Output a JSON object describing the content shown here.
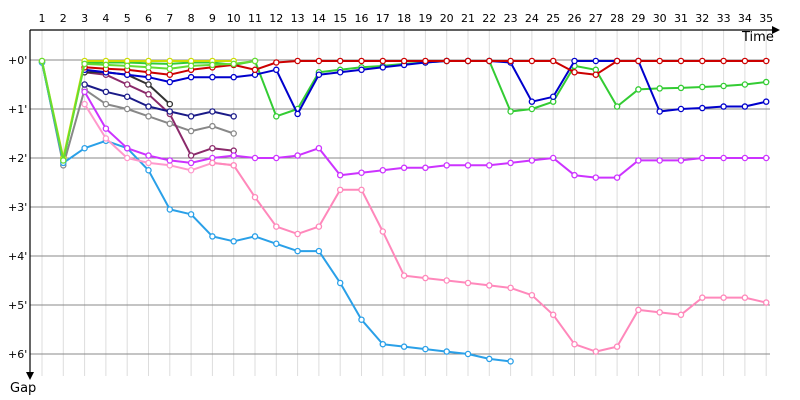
{
  "chart_data": {
    "type": "line",
    "xlabel": "Time",
    "ylabel": "Gap",
    "x_ticks": [
      "1",
      "2",
      "3",
      "4",
      "5",
      "6",
      "7",
      "8",
      "9",
      "10",
      "11",
      "12",
      "13",
      "14",
      "15",
      "16",
      "17",
      "18",
      "19",
      "20",
      "21",
      "22",
      "23",
      "24",
      "25",
      "26",
      "27",
      "28",
      "29",
      "30",
      "31",
      "32",
      "33",
      "34",
      "35"
    ],
    "y_ticks": [
      "+0'",
      "+1'",
      "+2'",
      "+3'",
      "+4'",
      "+5'",
      "+6'"
    ],
    "xlim": [
      1,
      35.3
    ],
    "ylim": [
      0,
      6.2
    ],
    "grid": true,
    "series": [
      {
        "color": "#888888",
        "x": [
          1,
          2,
          3,
          4,
          5,
          6,
          7,
          8,
          9,
          10
        ],
        "y": [
          0.03,
          2.15,
          0.6,
          0.9,
          1.0,
          1.15,
          1.3,
          1.45,
          1.35,
          1.5
        ]
      },
      {
        "color": "#33cc33",
        "x": [
          1,
          2,
          3,
          4,
          5,
          6,
          7,
          8,
          9,
          10,
          11,
          12,
          13,
          14,
          15,
          16,
          17,
          18,
          19,
          20,
          21,
          22,
          23,
          24,
          25,
          26,
          27,
          28,
          29,
          30,
          31,
          32,
          33,
          34,
          35
        ],
        "y": [
          0.05,
          2.05,
          0.05,
          0.05,
          0.05,
          0.07,
          0.08,
          0.05,
          0.05,
          0.1,
          0.02,
          1.15,
          1.0,
          0.25,
          0.2,
          0.15,
          0.12,
          0.08,
          0.05,
          0.02,
          0.02,
          0.02,
          1.05,
          1.0,
          0.85,
          0.12,
          0.2,
          0.95,
          0.6,
          0.58,
          0.57,
          0.55,
          0.53,
          0.5,
          0.45
        ]
      },
      {
        "color": "#2aa0e8",
        "x": [
          1,
          2,
          3,
          4,
          5,
          6,
          7,
          8,
          9,
          10,
          11,
          12,
          13,
          14,
          15,
          16,
          17,
          18,
          19,
          20,
          21,
          22,
          23
        ],
        "y": [
          0.05,
          2.1,
          1.8,
          1.65,
          1.8,
          2.25,
          3.05,
          3.15,
          3.6,
          3.7,
          3.6,
          3.75,
          3.9,
          3.9,
          4.55,
          5.3,
          5.8,
          5.85,
          5.9,
          5.95,
          6.0,
          6.1,
          6.15
        ]
      },
      {
        "color": "#ff99cc",
        "x": [
          3,
          4,
          5,
          6,
          7,
          8,
          9,
          10
        ],
        "y": [
          0.9,
          1.6,
          2.0,
          2.1,
          2.15,
          2.25,
          2.1,
          2.15
        ]
      },
      {
        "color": "#8b2a6b",
        "x": [
          3,
          4,
          5,
          6,
          7,
          8,
          9,
          10
        ],
        "y": [
          0.25,
          0.3,
          0.5,
          0.7,
          1.1,
          1.95,
          1.8,
          1.85
        ]
      },
      {
        "color": "#333333",
        "x": [
          3,
          4,
          5,
          6,
          7
        ],
        "y": [
          0.25,
          0.25,
          0.3,
          0.5,
          0.9
        ]
      },
      {
        "color": "#1a1a88",
        "x": [
          3,
          4,
          5,
          6,
          7,
          8,
          9,
          10
        ],
        "y": [
          0.5,
          0.65,
          0.75,
          0.95,
          1.05,
          1.15,
          1.05,
          1.15
        ]
      },
      {
        "color": "#cc33ff",
        "x": [
          3,
          4,
          5,
          6,
          7,
          8,
          9,
          10,
          11,
          12,
          13,
          14,
          15,
          16,
          17,
          18,
          19,
          20,
          21,
          22,
          23,
          24,
          25,
          26,
          27,
          28,
          29,
          30,
          31,
          32,
          33,
          34,
          35
        ],
        "y": [
          0.65,
          1.4,
          1.8,
          1.95,
          2.05,
          2.1,
          2.0,
          1.95,
          2.0,
          2.0,
          1.95,
          1.8,
          2.35,
          2.3,
          2.25,
          2.2,
          2.2,
          2.15,
          2.15,
          2.15,
          2.1,
          2.05,
          2.0,
          2.35,
          2.4,
          2.4,
          2.05,
          2.05,
          2.05,
          2.0,
          2.0,
          2.0,
          2.0
        ]
      },
      {
        "color": "#ff88bb",
        "x": [
          9,
          10,
          11,
          12,
          13,
          14,
          15,
          16,
          17,
          18,
          19,
          20,
          21,
          22,
          23,
          24,
          25,
          26,
          27,
          28,
          29,
          30,
          31,
          32,
          33,
          34,
          35
        ],
        "y": [
          2.1,
          2.15,
          2.8,
          3.4,
          3.55,
          3.4,
          2.65,
          2.65,
          3.5,
          4.4,
          4.45,
          4.5,
          4.55,
          4.6,
          4.65,
          4.8,
          5.2,
          5.8,
          5.95,
          5.85,
          5.1,
          5.15,
          5.2,
          4.85,
          4.85,
          4.85,
          4.95
        ]
      },
      {
        "color": "#0000cc",
        "x": [
          3,
          4,
          5,
          6,
          7,
          8,
          9,
          10,
          11,
          12,
          13,
          14,
          15,
          16,
          17,
          18,
          19,
          20,
          21,
          22,
          23,
          24,
          25,
          26,
          27,
          28,
          29,
          30,
          31,
          32,
          33,
          34,
          35
        ],
        "y": [
          0.2,
          0.25,
          0.3,
          0.35,
          0.45,
          0.35,
          0.35,
          0.35,
          0.3,
          0.2,
          1.1,
          0.3,
          0.25,
          0.2,
          0.15,
          0.1,
          0.05,
          0.02,
          0.02,
          0.02,
          0.05,
          0.85,
          0.75,
          0.02,
          0.02,
          0.02,
          0.02,
          1.05,
          1.0,
          0.98,
          0.95,
          0.95,
          0.85
        ]
      },
      {
        "color": "#cc0000",
        "x": [
          3,
          4,
          5,
          6,
          7,
          8,
          9,
          10,
          11,
          12,
          13,
          14,
          15,
          16,
          17,
          18,
          19,
          20,
          21,
          22,
          23,
          24,
          25,
          26,
          27,
          28,
          29,
          30,
          31,
          32,
          33,
          34,
          35
        ],
        "y": [
          0.15,
          0.18,
          0.2,
          0.25,
          0.3,
          0.2,
          0.15,
          0.1,
          0.2,
          0.05,
          0.02,
          0.02,
          0.02,
          0.02,
          0.02,
          0.02,
          0.02,
          0.02,
          0.02,
          0.02,
          0.02,
          0.02,
          0.02,
          0.25,
          0.3,
          0.02,
          0.02,
          0.02,
          0.02,
          0.02,
          0.02,
          0.02,
          0.02
        ]
      },
      {
        "color": "#ccdd00",
        "x": [
          1,
          2,
          3,
          4,
          5,
          6,
          7,
          8,
          9,
          10
        ],
        "y": [
          0.02,
          2.0,
          0.02,
          0.02,
          0.02,
          0.02,
          0.02,
          0.02,
          0.02,
          0.02
        ]
      },
      {
        "color": "#66dd33",
        "x": [
          1,
          2,
          3,
          4,
          5,
          6,
          7,
          8,
          9,
          10,
          11
        ],
        "y": [
          0.02,
          2.05,
          0.08,
          0.1,
          0.12,
          0.15,
          0.18,
          0.12,
          0.1,
          0.08,
          0.02
        ]
      }
    ]
  }
}
